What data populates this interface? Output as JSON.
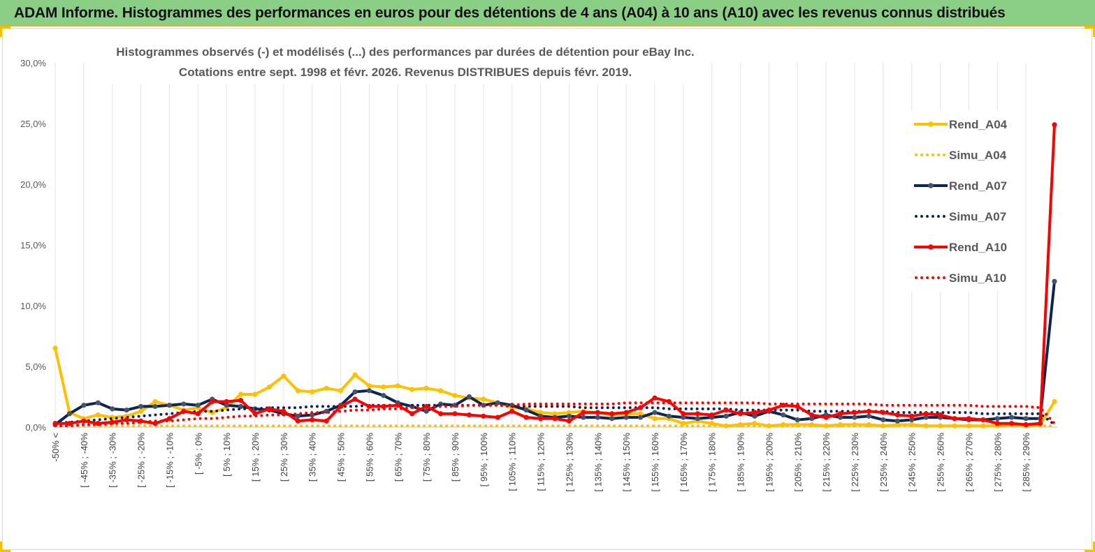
{
  "report": {
    "title": "ADAM Informe. Histogrammes des performances en euros pour des détentions de 4 ans (A04) à 10 ans (A10) avec les revenus connus distribués"
  },
  "chart_data": {
    "type": "line",
    "title_line1": "Histogrammes observés (-) et modélisés (...) des performances par durées de détention pour eBay Inc.",
    "title_line2": "Cotations entre sept. 1998 et févr. 2026. Revenus DISTRIBUES depuis févr. 2019.",
    "ylim": [
      0,
      30
    ],
    "yticks": [
      0,
      5,
      10,
      15,
      20,
      25,
      30
    ],
    "ytick_labels": [
      "0,0%",
      "5,0%",
      "10,0%",
      "15,0%",
      "20,0%",
      "25,0%",
      "30,0%"
    ],
    "grid": "vertical",
    "legend_position": "right",
    "tick_labels": [
      "-50% <",
      "[ -45% ; -40%",
      "[ -35% ; -30%",
      "[ -25% ; -20%",
      "[ -15% ; -10%",
      "[ -5% ; 0%",
      "[ 5% ; 10%",
      "[ 15% ; 20%",
      "[ 25% ; 30%",
      "[ 35% ; 40%",
      "[ 45% ; 50%",
      "[ 55% ; 60%",
      "[ 65% ; 70%",
      "[ 75% ; 80%",
      "[ 85% ; 90%",
      "[ 95% ; 100%",
      "[ 105% ; 110%",
      "[ 115% ; 120%",
      "[ 125% ; 130%",
      "[ 135% ; 140%",
      "[ 145% ; 150%",
      "[ 155% ; 160%",
      "[ 165% ; 170%",
      "[ 175% ; 180%",
      "[ 185% ; 190%",
      "[ 195% ; 200%",
      "[ 205% ; 210%",
      "[ 215% ; 220%",
      "[ 225% ; 230%",
      "[ 235% ; 240%",
      "[ 245% ; 250%",
      "[ 255% ; 260%",
      "[ 265% ; 270%",
      "[ 275% ; 280%",
      "[ 285% ; 290%"
    ],
    "series": [
      {
        "name": "Rend_A04",
        "color": "#ffc000",
        "style": "solid",
        "values": [
          6.5,
          1.2,
          0.7,
          1.0,
          0.8,
          0.9,
          1.3,
          2.1,
          1.8,
          1.4,
          1.6,
          1.2,
          1.6,
          2.7,
          2.7,
          3.3,
          4.2,
          3.0,
          2.9,
          3.2,
          3.0,
          4.3,
          3.4,
          3.3,
          3.4,
          3.1,
          3.2,
          3.0,
          2.6,
          2.4,
          2.3,
          2.0,
          1.6,
          1.5,
          1.2,
          1.1,
          1.2,
          1.3,
          1.2,
          1.0,
          1.1,
          1.1,
          0.7,
          0.7,
          0.3,
          0.5,
          0.3,
          0.1,
          0.2,
          0.3,
          0.1,
          0.2,
          0.2,
          0.2,
          0.1,
          0.2,
          0.2,
          0.2,
          0.1,
          0.2,
          0.2,
          0.1,
          0.1,
          0.1,
          0.1,
          0.1,
          0.1,
          0.2,
          0.1,
          0.2,
          2.1
        ]
      },
      {
        "name": "Simu_A04",
        "color": "#ffc000",
        "style": "dotted",
        "values": [
          0.1,
          0.1,
          0.1,
          0.1,
          0.1,
          0.1,
          0.1,
          0.1,
          0.1,
          0.1,
          0.1,
          0.1,
          0.1,
          0.1,
          0.1,
          0.1,
          0.1,
          0.1,
          0.1,
          0.1,
          0.1,
          0.1,
          0.1,
          0.1,
          0.1,
          0.1,
          0.1,
          0.1,
          0.1,
          0.1,
          0.1,
          0.1,
          0.1,
          0.1,
          0.1,
          0.1,
          0.1,
          0.1,
          0.1,
          0.1,
          0.1,
          0.1,
          0.1,
          0.1,
          0.1,
          0.1,
          0.1,
          0.1,
          0.1,
          0.1,
          0.1,
          0.1,
          0.1,
          0.1,
          0.1,
          0.1,
          0.1,
          0.1,
          0.1,
          0.1,
          0.1,
          0.1,
          0.1,
          0.1,
          0.1,
          0.1,
          0.1,
          0.1,
          0.1,
          0.1,
          0.1
        ]
      },
      {
        "name": "Rend_A07",
        "color": "#0e2452",
        "style": "solid",
        "values": [
          0.2,
          1.1,
          1.8,
          2.0,
          1.5,
          1.4,
          1.7,
          1.7,
          1.8,
          1.9,
          1.8,
          2.3,
          1.8,
          1.7,
          1.5,
          1.4,
          1.1,
          0.9,
          1.0,
          1.3,
          1.8,
          2.9,
          3.0,
          2.6,
          2.0,
          1.7,
          1.3,
          1.9,
          1.8,
          2.5,
          1.8,
          2.0,
          1.8,
          1.4,
          0.9,
          0.8,
          0.9,
          0.8,
          0.8,
          0.7,
          0.8,
          0.8,
          1.2,
          0.9,
          0.8,
          0.7,
          0.8,
          0.9,
          1.2,
          0.9,
          1.3,
          1.0,
          0.6,
          0.7,
          1.0,
          0.8,
          0.8,
          0.9,
          0.6,
          0.5,
          0.6,
          0.8,
          0.8,
          0.7,
          0.6,
          0.6,
          0.7,
          0.8,
          0.7,
          0.7,
          12.0
        ]
      },
      {
        "name": "Simu_A07",
        "color": "#0e2452",
        "style": "dotted",
        "values": [
          0.3,
          0.4,
          0.5,
          0.6,
          0.7,
          0.8,
          0.9,
          1.0,
          1.1,
          1.2,
          1.3,
          1.3,
          1.4,
          1.5,
          1.5,
          1.6,
          1.6,
          1.6,
          1.7,
          1.7,
          1.7,
          1.7,
          1.8,
          1.8,
          1.8,
          1.8,
          1.8,
          1.8,
          1.8,
          1.8,
          1.8,
          1.8,
          1.7,
          1.7,
          1.7,
          1.7,
          1.7,
          1.6,
          1.6,
          1.6,
          1.6,
          1.6,
          1.6,
          1.5,
          1.5,
          1.5,
          1.5,
          1.5,
          1.4,
          1.4,
          1.4,
          1.4,
          1.4,
          1.3,
          1.3,
          1.3,
          1.3,
          1.3,
          1.3,
          1.2,
          1.2,
          1.2,
          1.2,
          1.2,
          1.2,
          1.1,
          1.1,
          1.1,
          1.1,
          1.1,
          0.2
        ]
      },
      {
        "name": "Rend_A10",
        "color": "#ff0000",
        "style": "solid",
        "values": [
          0.3,
          0.3,
          0.5,
          0.3,
          0.4,
          0.6,
          0.5,
          0.3,
          0.7,
          1.3,
          1.1,
          2.1,
          2.1,
          2.2,
          1.1,
          1.5,
          1.3,
          0.5,
          0.6,
          0.5,
          1.7,
          2.3,
          1.7,
          1.7,
          1.8,
          1.1,
          1.7,
          1.1,
          1.1,
          1.0,
          0.9,
          0.8,
          1.3,
          0.8,
          0.7,
          0.7,
          0.5,
          1.2,
          1.2,
          1.1,
          1.2,
          1.6,
          2.4,
          2.1,
          1.1,
          1.1,
          1.0,
          1.4,
          1.1,
          1.2,
          1.4,
          1.8,
          1.7,
          1.0,
          0.8,
          1.1,
          1.2,
          1.3,
          1.2,
          1.0,
          0.9,
          1.1,
          1.0,
          0.7,
          0.7,
          0.6,
          0.3,
          0.3,
          0.2,
          0.3,
          24.9
        ]
      },
      {
        "name": "Simu_A10",
        "color": "#ff0000",
        "style": "dotted",
        "values": [
          0.1,
          0.1,
          0.2,
          0.2,
          0.3,
          0.3,
          0.4,
          0.5,
          0.5,
          0.6,
          0.7,
          0.7,
          0.8,
          0.9,
          0.9,
          1.0,
          1.0,
          1.1,
          1.2,
          1.2,
          1.3,
          1.4,
          1.4,
          1.5,
          1.5,
          1.6,
          1.6,
          1.7,
          1.7,
          1.8,
          1.8,
          1.8,
          1.8,
          1.9,
          1.9,
          1.9,
          1.9,
          1.9,
          1.9,
          1.9,
          2.0,
          2.0,
          2.0,
          2.0,
          2.0,
          2.0,
          2.0,
          2.0,
          2.0,
          2.0,
          1.9,
          1.9,
          1.9,
          1.9,
          1.9,
          1.9,
          1.9,
          1.9,
          1.8,
          1.8,
          1.8,
          1.8,
          1.8,
          1.8,
          1.8,
          1.7,
          1.7,
          1.7,
          1.7,
          1.6,
          0.3
        ]
      }
    ]
  }
}
